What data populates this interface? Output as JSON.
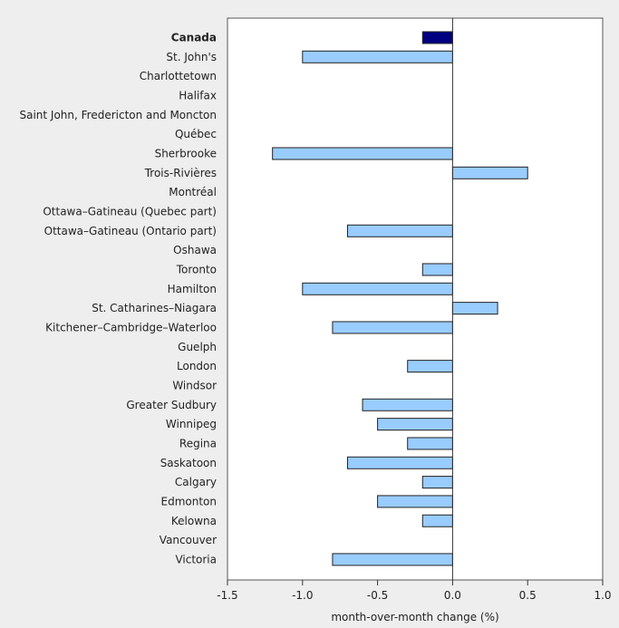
{
  "chart_data": {
    "type": "bar",
    "orientation": "horizontal",
    "title": "",
    "xlabel": "month-over-month change (%)",
    "ylabel": "",
    "xlim": [
      -1.5,
      1.0
    ],
    "xticks": [
      "-1.5",
      "-1.0",
      "-0.5",
      "0.0",
      "0.5",
      "1.0"
    ],
    "xtick_values": [
      -1.5,
      -1.0,
      -0.5,
      0.0,
      0.5,
      1.0
    ],
    "grid": false,
    "colors": {
      "highlight": "#000080",
      "default": "#99ccff",
      "background": "#eeeeee",
      "plot": "#ffffff"
    },
    "categories": [
      "Canada",
      "St. John's",
      "Charlottetown",
      "Halifax",
      "Saint John, Fredericton and Moncton",
      "Québec",
      "Sherbrooke",
      "Trois-Rivières",
      "Montréal",
      "Ottawa–Gatineau (Quebec part)",
      "Ottawa–Gatineau (Ontario part)",
      "Oshawa",
      "Toronto",
      "Hamilton",
      "St. Catharines–Niagara",
      "Kitchener–Cambridge–Waterloo",
      "Guelph",
      "London",
      "Windsor",
      "Greater Sudbury",
      "Winnipeg",
      "Regina",
      "Saskatoon",
      "Calgary",
      "Edmonton",
      "Kelowna",
      "Vancouver",
      "Victoria"
    ],
    "values": [
      -0.2,
      -1.0,
      0.0,
      0.0,
      0.0,
      0.0,
      -1.2,
      0.5,
      0.0,
      0.0,
      -0.7,
      0.0,
      -0.2,
      -1.0,
      0.3,
      -0.8,
      0.0,
      -0.3,
      0.0,
      -0.6,
      -0.5,
      -0.3,
      -0.7,
      -0.2,
      -0.5,
      -0.2,
      0.0,
      -0.8
    ],
    "highlighted": [
      "Canada"
    ]
  }
}
